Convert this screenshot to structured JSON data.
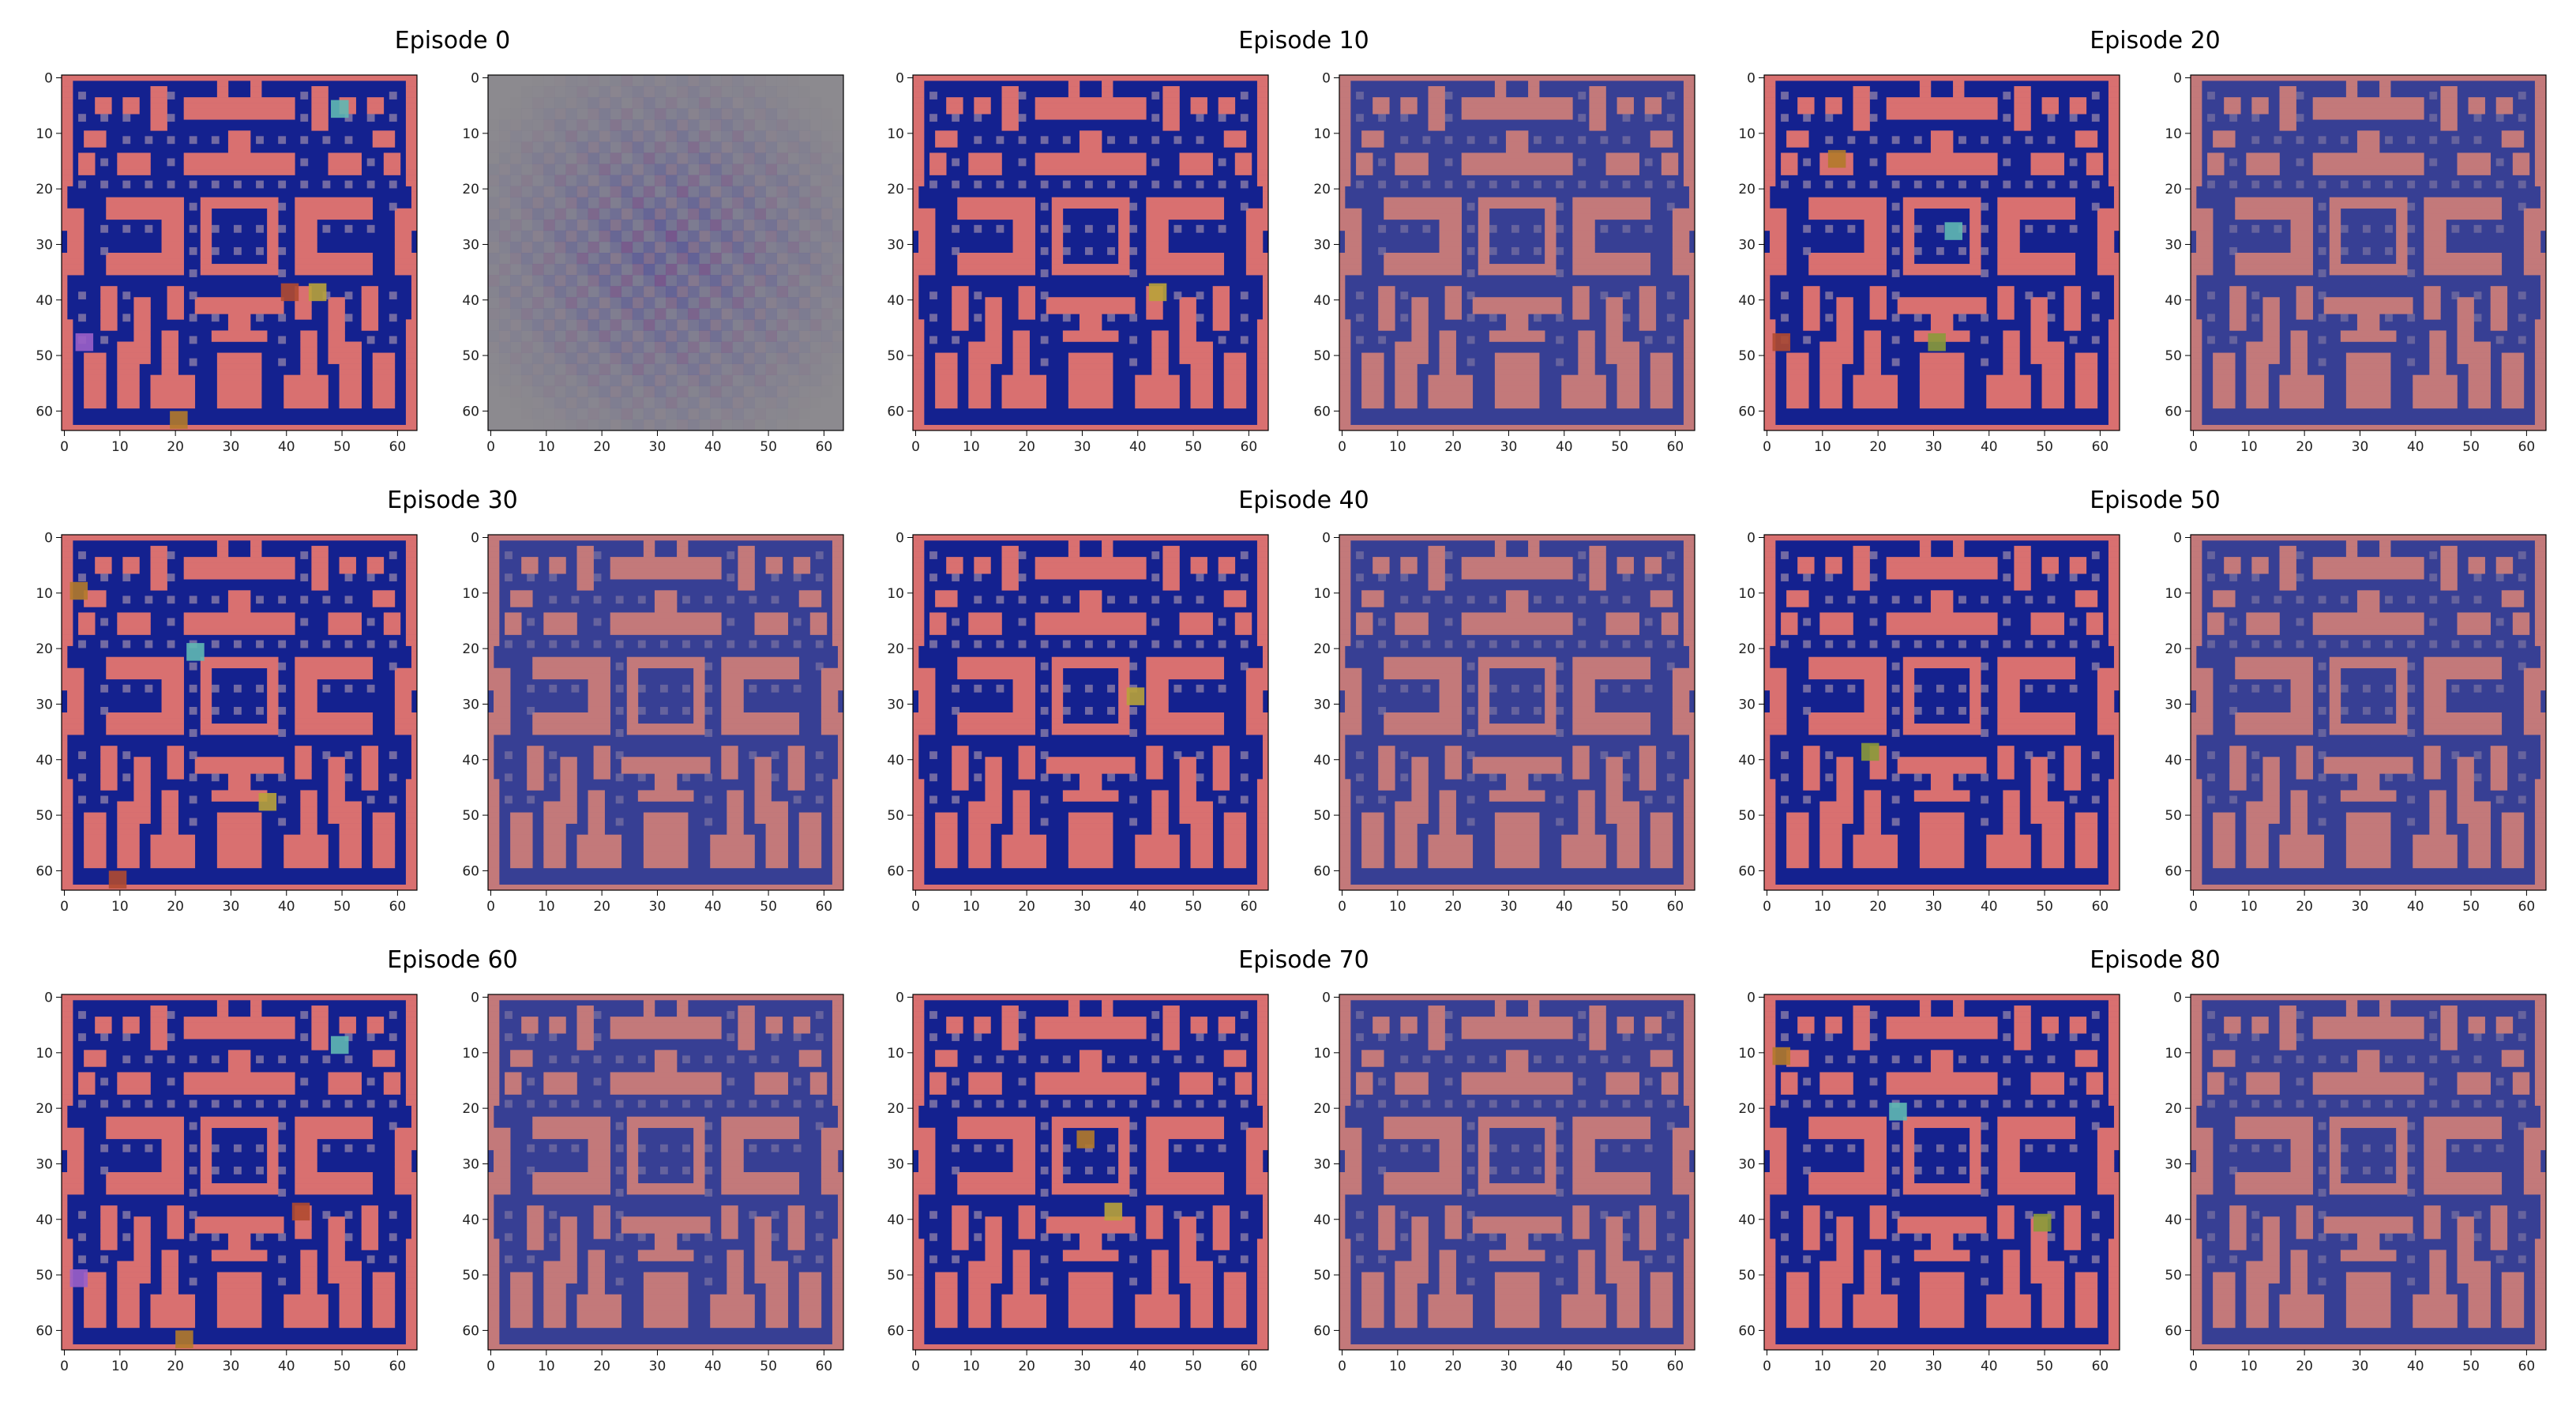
{
  "figure": {
    "episodes": [
      {
        "title": "Episode 0",
        "row": 0,
        "col": 0
      },
      {
        "title": "Episode 10",
        "row": 0,
        "col": 1
      },
      {
        "title": "Episode 20",
        "row": 0,
        "col": 2
      },
      {
        "title": "Episode 30",
        "row": 1,
        "col": 0
      },
      {
        "title": "Episode 40",
        "row": 1,
        "col": 1
      },
      {
        "title": "Episode 50",
        "row": 1,
        "col": 2
      },
      {
        "title": "Episode 60",
        "row": 2,
        "col": 0
      },
      {
        "title": "Episode 70",
        "row": 2,
        "col": 1
      },
      {
        "title": "Episode 80",
        "row": 2,
        "col": 2
      }
    ],
    "ticks": [
      "0",
      "10",
      "20",
      "30",
      "40",
      "50",
      "60"
    ],
    "image_extent": [
      0,
      63
    ],
    "colors": {
      "wall": "#d97070",
      "floor": "#14218f",
      "pellet": "#8a7da8",
      "noise_grey": "#8c8a8f"
    },
    "panels_per_episode": [
      "observation",
      "reconstruction"
    ],
    "sprites": [
      {
        "ep": 0,
        "x": 50,
        "y": 6,
        "color": "#5fb8b2"
      },
      {
        "ep": 0,
        "x": 41,
        "y": 39,
        "color": "#b04a30"
      },
      {
        "ep": 0,
        "x": 46,
        "y": 39,
        "color": "#b8a23a"
      },
      {
        "ep": 0,
        "x": 4,
        "y": 48,
        "color": "#9a5fc8"
      },
      {
        "ep": 0,
        "x": 21,
        "y": 62,
        "color": "#b37a2a"
      },
      {
        "ep": 10,
        "x": 44,
        "y": 39,
        "color": "#b8a23a"
      },
      {
        "ep": 20,
        "x": 13,
        "y": 15,
        "color": "#b37a2a"
      },
      {
        "ep": 20,
        "x": 34,
        "y": 28,
        "color": "#5fb8b2"
      },
      {
        "ep": 20,
        "x": 3,
        "y": 48,
        "color": "#b04a30"
      },
      {
        "ep": 20,
        "x": 31,
        "y": 48,
        "color": "#8a9a3a"
      },
      {
        "ep": 30,
        "x": 3,
        "y": 10,
        "color": "#b37a2a"
      },
      {
        "ep": 30,
        "x": 24,
        "y": 21,
        "color": "#5fb8b2"
      },
      {
        "ep": 30,
        "x": 37,
        "y": 48,
        "color": "#b8a23a"
      },
      {
        "ep": 30,
        "x": 10,
        "y": 62,
        "color": "#b04a30"
      },
      {
        "ep": 40,
        "x": 40,
        "y": 29,
        "color": "#b8a23a"
      },
      {
        "ep": 50,
        "x": 19,
        "y": 39,
        "color": "#8a9a3a"
      },
      {
        "ep": 60,
        "x": 50,
        "y": 9,
        "color": "#5fb8b2"
      },
      {
        "ep": 60,
        "x": 43,
        "y": 39,
        "color": "#b04a30"
      },
      {
        "ep": 60,
        "x": 3,
        "y": 51,
        "color": "#9a5fc8"
      },
      {
        "ep": 60,
        "x": 22,
        "y": 62,
        "color": "#b37a2a"
      },
      {
        "ep": 70,
        "x": 31,
        "y": 26,
        "color": "#b37a2a"
      },
      {
        "ep": 70,
        "x": 36,
        "y": 39,
        "color": "#b8a23a"
      },
      {
        "ep": 80,
        "x": 3,
        "y": 11,
        "color": "#b37a2a"
      },
      {
        "ep": 80,
        "x": 24,
        "y": 21,
        "color": "#5fb8b2"
      },
      {
        "ep": 80,
        "x": 50,
        "y": 41,
        "color": "#8a9a3a"
      }
    ]
  }
}
